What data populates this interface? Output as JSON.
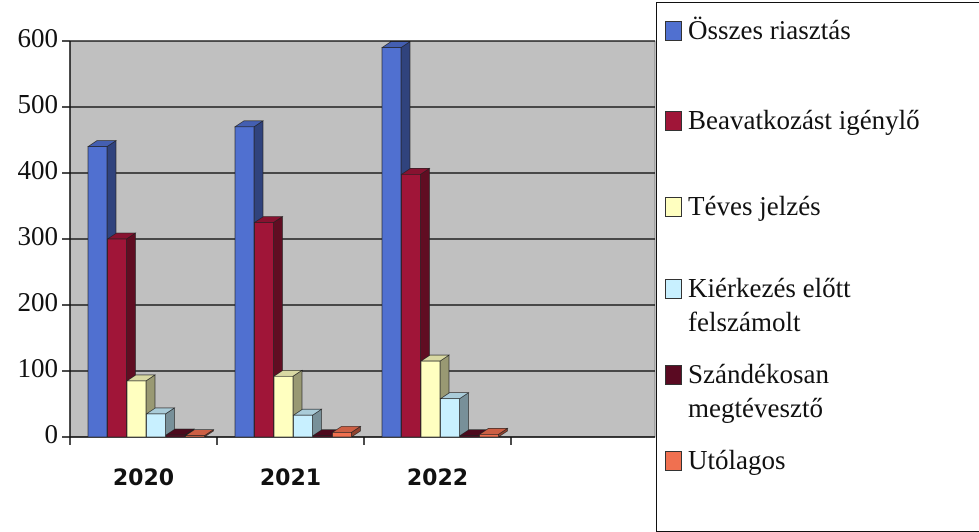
{
  "chart_data": {
    "type": "bar",
    "categories": [
      "2020",
      "2021",
      "2022"
    ],
    "series": [
      {
        "name": "Összes riasztás",
        "color": "#5070d0",
        "values": [
          440,
          470,
          590
        ]
      },
      {
        "name": "Beavatkozást igénylő",
        "color": "#a01538",
        "values": [
          300,
          325,
          398
        ]
      },
      {
        "name": "Téves jelzés",
        "color": "#ffffc0",
        "values": [
          85,
          92,
          115
        ]
      },
      {
        "name": "Kiérkezés előtt felszámolt",
        "color": "#c8f0ff",
        "values": [
          35,
          33,
          58
        ]
      },
      {
        "name": "Szándékosan megtévesztő",
        "color": "#5a0a22",
        "values": [
          3,
          2,
          2
        ]
      },
      {
        "name": "Utólagos",
        "color": "#f07050",
        "values": [
          2,
          7,
          4
        ]
      }
    ],
    "ylim": [
      0,
      600
    ],
    "yticks": [
      0,
      100,
      200,
      300,
      400,
      500,
      600
    ],
    "grid": true
  }
}
